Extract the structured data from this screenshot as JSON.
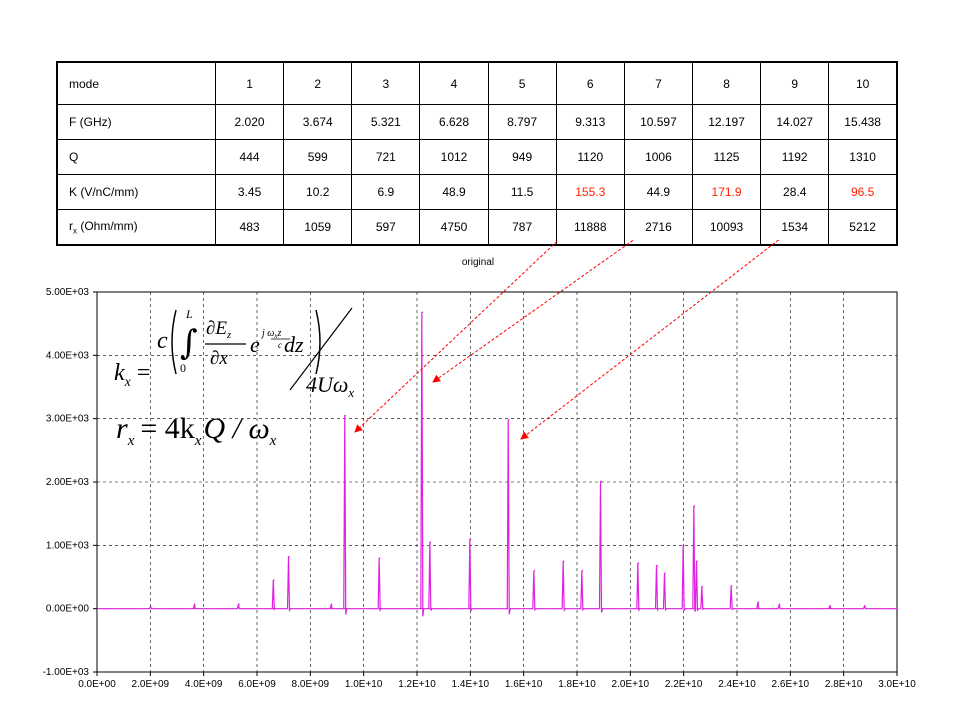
{
  "table": {
    "header_label": "mode",
    "modes": [
      "1",
      "2",
      "3",
      "4",
      "5",
      "6",
      "7",
      "8",
      "9",
      "10"
    ],
    "rows": [
      {
        "label": "F (GHz)",
        "values": [
          "2.020",
          "3.674",
          "5.321",
          "6.628",
          "8.797",
          "9.313",
          "10.597",
          "12.197",
          "14.027",
          "15.438"
        ],
        "highlight": []
      },
      {
        "label": "Q",
        "values": [
          "444",
          "599",
          "721",
          "1012",
          "949",
          "1120",
          "1006",
          "1125",
          "1192",
          "1310"
        ],
        "highlight": []
      },
      {
        "label": "K (V/nC/mm)",
        "values": [
          "3.45",
          "10.2",
          "6.9",
          "48.9",
          "11.5",
          "155.3",
          "44.9",
          "171.9",
          "28.4",
          "96.5"
        ],
        "highlight": [
          5,
          7,
          9
        ]
      },
      {
        "label_main": "r",
        "label_sub": "x",
        "label_tail": " (Ohm/mm)",
        "values": [
          "483",
          "1059",
          "597",
          "4750",
          "787",
          "11888",
          "2716",
          "10093",
          "1534",
          "5212"
        ],
        "highlight": []
      }
    ],
    "highlight_color": "#ff2200"
  },
  "chart_data": {
    "type": "line",
    "title": "original",
    "xlim": [
      0,
      30000000000.0
    ],
    "ylim": [
      -1000,
      5000
    ],
    "x_ticks": [
      "0.0E+00",
      "2.0E+09",
      "4.0E+09",
      "6.0E+09",
      "8.0E+09",
      "1.0E+10",
      "1.2E+10",
      "1.4E+10",
      "1.6E+10",
      "1.8E+10",
      "2.0E+10",
      "2.2E+10",
      "2.4E+10",
      "2.6E+10",
      "2.8E+10",
      "3.0E+10"
    ],
    "y_ticks": [
      "-1.00E+03",
      "0.00E+00",
      "1.00E+03",
      "2.00E+03",
      "3.00E+03",
      "4.00E+03",
      "5.00E+03"
    ],
    "grid": true,
    "line_color": "#e020e0",
    "peaks": [
      {
        "x": 2020000000.0,
        "y": 30
      },
      {
        "x": 3670000000.0,
        "y": 60
      },
      {
        "x": 5320000000.0,
        "y": 70
      },
      {
        "x": 6630000000.0,
        "y": 450
      },
      {
        "x": 7200000000.0,
        "y": 820
      },
      {
        "x": 8800000000.0,
        "y": 60
      },
      {
        "x": 9310000000.0,
        "y": 3050
      },
      {
        "x": 10600000000.0,
        "y": 800
      },
      {
        "x": 12200000000.0,
        "y": 4680
      },
      {
        "x": 12500000000.0,
        "y": 1050
      },
      {
        "x": 14000000000.0,
        "y": 1100
      },
      {
        "x": 15440000000.0,
        "y": 2980
      },
      {
        "x": 16400000000.0,
        "y": 600
      },
      {
        "x": 17500000000.0,
        "y": 750
      },
      {
        "x": 18200000000.0,
        "y": 600
      },
      {
        "x": 18900000000.0,
        "y": 2010
      },
      {
        "x": 20300000000.0,
        "y": 720
      },
      {
        "x": 21000000000.0,
        "y": 680
      },
      {
        "x": 21300000000.0,
        "y": 560
      },
      {
        "x": 22000000000.0,
        "y": 1000
      },
      {
        "x": 22400000000.0,
        "y": 1620
      },
      {
        "x": 22500000000.0,
        "y": 750
      },
      {
        "x": 22700000000.0,
        "y": 350
      },
      {
        "x": 23800000000.0,
        "y": 360
      },
      {
        "x": 24800000000.0,
        "y": 100
      },
      {
        "x": 25600000000.0,
        "y": 60
      },
      {
        "x": 27500000000.0,
        "y": 40
      },
      {
        "x": 28800000000.0,
        "y": 40
      }
    ],
    "annotation_color": "#ff0000"
  },
  "formula": {
    "k_lhs": "k",
    "k_sub": "x",
    "equals": "=",
    "c": "c",
    "upper": "L",
    "lower": "0",
    "partial": "∂E",
    "partial_sub": "z",
    "dx": "∂x",
    "e": "e",
    "dz": "dz",
    "denominator": "4Uω",
    "denominator_sub": "x",
    "r_line_r": "r",
    "r_line_rest": "= 4k",
    "r_line_q": "Q / ω"
  }
}
